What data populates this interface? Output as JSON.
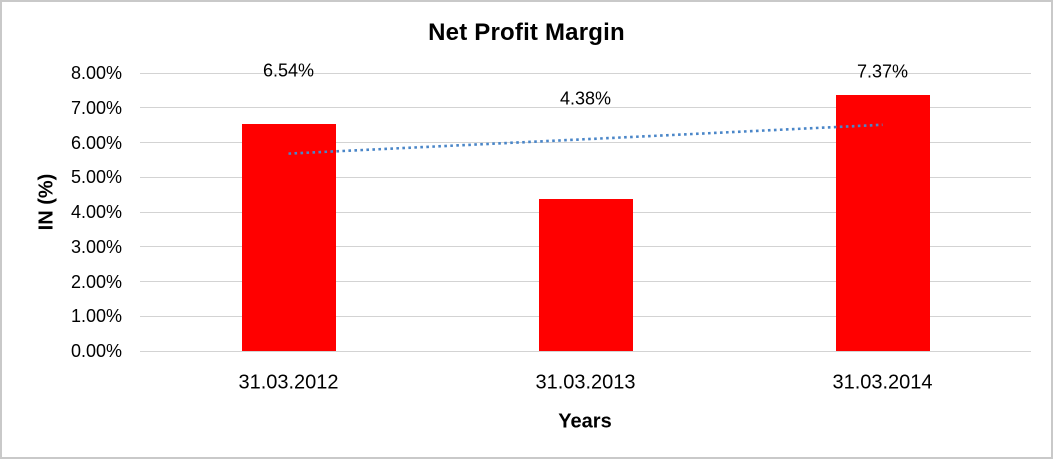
{
  "window": {
    "background": "#ffffff",
    "border_color": "#c9c9c9"
  },
  "chart_data": {
    "type": "bar",
    "title": "Net Profit Margin",
    "categories": [
      "31.03.2012",
      "31.03.2013",
      "31.03.2014"
    ],
    "series": [
      {
        "name": "Net Profit Margin",
        "values": [
          6.54,
          4.38,
          7.37
        ]
      }
    ],
    "data_labels": [
      "6.54%",
      "4.38%",
      "7.37%"
    ],
    "xlabel": "Years",
    "ylabel": "IN (%)",
    "ylim": [
      0,
      8
    ],
    "ytick_step": 1,
    "ytick_labels": [
      "8.00%",
      "7.00%",
      "6.00%",
      "5.00%",
      "4.00%",
      "3.00%",
      "2.00%",
      "1.00%",
      "0.00%"
    ],
    "grid": true,
    "legend": "none",
    "bar_color": "#ff0000",
    "gridline_color": "#d3d3d3",
    "trendline": {
      "type": "linear",
      "style": "dotted",
      "color": "#4a86c8",
      "start_value": 5.68,
      "end_value": 6.51
    }
  }
}
